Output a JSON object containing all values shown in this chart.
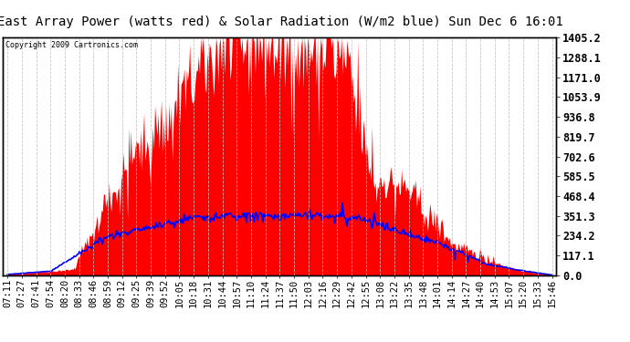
{
  "title": "East Array Power (watts red) & Solar Radiation (W/m2 blue) Sun Dec 6 16:01",
  "copyright": "Copyright 2009 Cartronics.com",
  "y_max": 1405.2,
  "y_min": 0.0,
  "y_ticks": [
    0.0,
    117.1,
    234.2,
    351.3,
    468.4,
    585.5,
    702.6,
    819.7,
    936.8,
    1053.9,
    1171.0,
    1288.1,
    1405.2
  ],
  "x_labels": [
    "07:11",
    "07:27",
    "07:41",
    "07:54",
    "08:20",
    "08:33",
    "08:46",
    "08:59",
    "09:12",
    "09:25",
    "09:39",
    "09:52",
    "10:05",
    "10:18",
    "10:31",
    "10:44",
    "10:57",
    "11:10",
    "11:24",
    "11:37",
    "11:50",
    "12:03",
    "12:16",
    "12:29",
    "12:42",
    "12:55",
    "13:08",
    "13:22",
    "13:35",
    "13:48",
    "14:01",
    "14:14",
    "14:27",
    "14:40",
    "14:53",
    "15:07",
    "15:20",
    "15:33",
    "15:46"
  ],
  "power_color": "#FF0000",
  "radiation_color": "#0000FF",
  "background_color": "#FFFFFF",
  "grid_color": "#C0C0C0",
  "title_fontsize": 10,
  "tick_fontsize": 7.5
}
